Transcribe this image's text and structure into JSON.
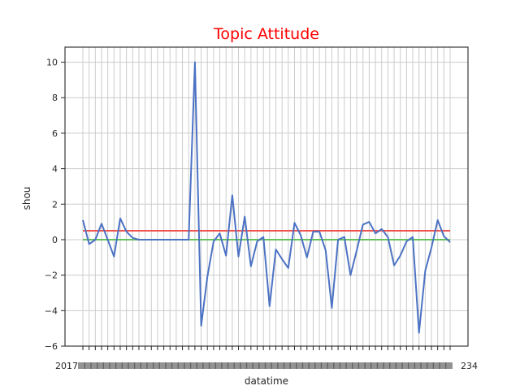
{
  "chart_data": {
    "type": "line",
    "title": "Topic Attitude",
    "title_color": "#ff0000",
    "xlabel": "datatime",
    "ylabel": "shou",
    "ylim": [
      -6,
      11
    ],
    "yticks": [
      -6,
      -4,
      -2,
      0,
      2,
      4,
      6,
      8,
      10
    ],
    "grid": true,
    "x_count": 60,
    "x_tick_labels_note_first": "2017",
    "x_tick_labels_note_last": "234",
    "series": [
      {
        "color": "#4c72c4",
        "values": [
          1.1,
          -0.25,
          0.0,
          0.9,
          0.0,
          -0.95,
          1.2,
          0.45,
          0.1,
          0.0,
          0.0,
          0.0,
          0.0,
          0.0,
          0.0,
          0.0,
          0.0,
          0.0,
          10.0,
          -4.85,
          -2.1,
          -0.1,
          0.35,
          -0.9,
          2.5,
          -0.95,
          1.3,
          -1.5,
          -0.1,
          0.15,
          -3.75,
          -0.55,
          -1.1,
          -1.6,
          0.95,
          0.25,
          -1.0,
          0.45,
          0.45,
          -0.6,
          -3.85,
          0.0,
          0.15,
          -2.0,
          -0.6,
          0.85,
          1.0,
          0.35,
          0.6,
          0.15,
          -1.45,
          -0.9,
          -0.1,
          0.15,
          -5.25,
          -1.75,
          -0.45,
          1.1,
          0.2,
          -0.15
        ]
      },
      {
        "color": "#ef5350",
        "values": [
          0.5,
          0.5
        ]
      },
      {
        "color": "#66c25f",
        "values": [
          0.0,
          0.0
        ]
      }
    ]
  }
}
